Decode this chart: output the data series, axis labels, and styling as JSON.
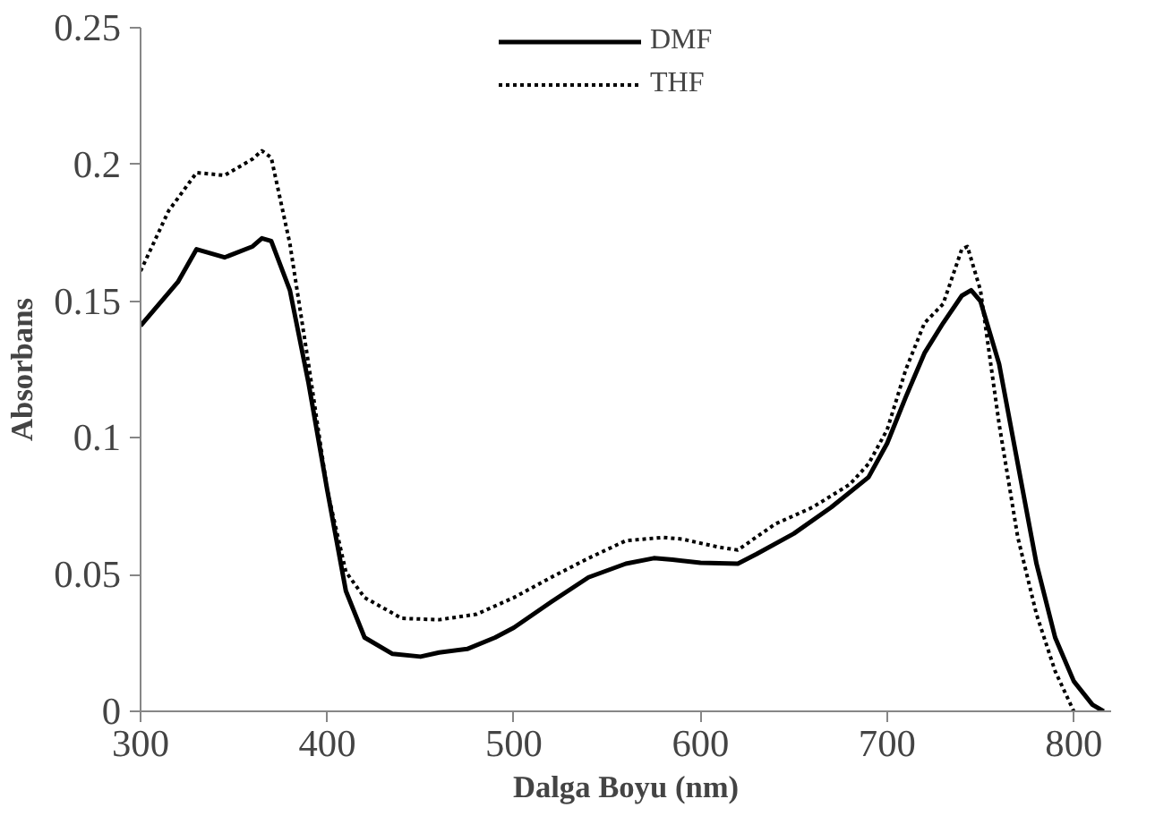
{
  "chart_data": {
    "type": "line",
    "xlabel": "Dalga Boyu (nm)",
    "ylabel": "Absorbans",
    "xlim": [
      300,
      820
    ],
    "ylim": [
      0,
      0.25
    ],
    "xticks": [
      300,
      400,
      500,
      600,
      700,
      800
    ],
    "yticks": [
      0,
      0.05,
      0.1,
      0.15,
      0.2,
      0.25
    ],
    "grid": false,
    "legend": "top",
    "marker": "none",
    "series": [
      {
        "name": "DMF",
        "color": "#000000",
        "line_style": "solid",
        "x": [
          300,
          320,
          330,
          345,
          360,
          365,
          370,
          380,
          390,
          400,
          410,
          420,
          435,
          450,
          460,
          475,
          490,
          500,
          520,
          540,
          560,
          575,
          585,
          600,
          620,
          630,
          650,
          670,
          690,
          700,
          710,
          720,
          730,
          740,
          745,
          750,
          760,
          770,
          780,
          790,
          800,
          810,
          816
        ],
        "values": [
          0.141,
          0.157,
          0.169,
          0.166,
          0.17,
          0.173,
          0.172,
          0.154,
          0.12,
          0.081,
          0.044,
          0.027,
          0.021,
          0.02,
          0.0215,
          0.0228,
          0.027,
          0.0306,
          0.04,
          0.049,
          0.054,
          0.056,
          0.0555,
          0.0543,
          0.054,
          0.0575,
          0.065,
          0.0746,
          0.0856,
          0.098,
          0.115,
          0.131,
          0.142,
          0.152,
          0.154,
          0.15,
          0.127,
          0.0905,
          0.054,
          0.027,
          0.011,
          0.0024,
          0
        ]
      },
      {
        "name": "THF",
        "color": "#000000",
        "line_style": "dotted",
        "x": [
          300,
          315,
          330,
          345,
          360,
          365,
          370,
          380,
          390,
          400,
          410,
          420,
          440,
          460,
          480,
          500,
          520,
          540,
          560,
          580,
          590,
          610,
          620,
          640,
          660,
          680,
          690,
          700,
          710,
          720,
          730,
          740,
          743,
          750,
          760,
          770,
          780,
          790,
          800
        ],
        "values": [
          0.161,
          0.183,
          0.197,
          0.196,
          0.202,
          0.205,
          0.2025,
          0.171,
          0.127,
          0.081,
          0.051,
          0.0416,
          0.034,
          0.0335,
          0.0355,
          0.0416,
          0.049,
          0.056,
          0.0624,
          0.0636,
          0.063,
          0.06,
          0.059,
          0.0685,
          0.0746,
          0.083,
          0.0905,
          0.103,
          0.125,
          0.142,
          0.149,
          0.169,
          0.17,
          0.154,
          0.105,
          0.0636,
          0.0355,
          0.0147,
          0
        ]
      }
    ]
  }
}
